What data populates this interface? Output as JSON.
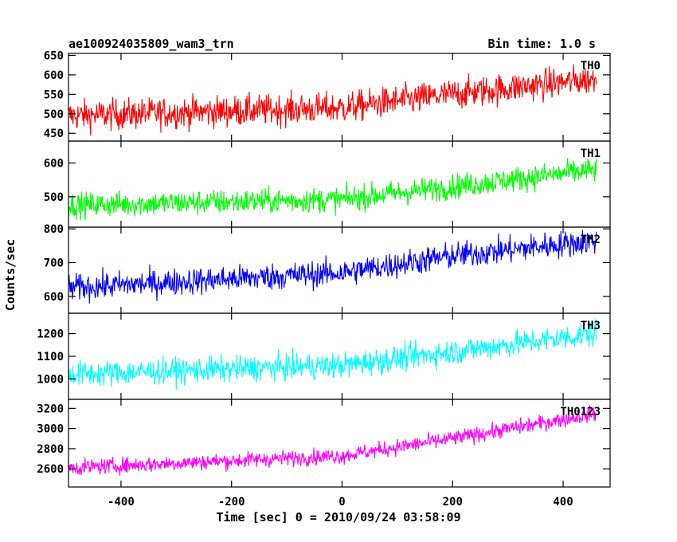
{
  "header": {
    "title": "ae100924035809_wam3_trn",
    "bin_time": "Bin time: 1.0 s"
  },
  "chart_data": {
    "type": "line",
    "xlabel": "Time [sec] 0 = 2010/09/24 03:58:09",
    "ylabel": "Counts/sec",
    "xlim": [
      -495,
      485
    ],
    "x_ticks": [
      -400,
      -200,
      0,
      200,
      400
    ],
    "x_range": [
      -495,
      460
    ],
    "bin_time_s": 1.0,
    "panels": [
      {
        "name": "TH0",
        "color": "#ff0000",
        "ylim": [
          430,
          655
        ],
        "y_ticks": [
          450,
          500,
          550,
          600,
          650
        ],
        "trend": [
          {
            "x": -495,
            "y": 495
          },
          {
            "x": 0,
            "y": 515
          },
          {
            "x": 200,
            "y": 550
          },
          {
            "x": 460,
            "y": 590
          }
        ],
        "noise": 28
      },
      {
        "name": "TH1",
        "color": "#00ff00",
        "ylim": [
          410,
          665
        ],
        "y_ticks": [
          500,
          600
        ],
        "trend": [
          {
            "x": -495,
            "y": 475
          },
          {
            "x": 0,
            "y": 492
          },
          {
            "x": 200,
            "y": 530
          },
          {
            "x": 460,
            "y": 580
          }
        ],
        "noise": 26
      },
      {
        "name": "TH2",
        "color": "#0000ff",
        "ylim": [
          550,
          805
        ],
        "y_ticks": [
          600,
          700,
          800
        ],
        "trend": [
          {
            "x": -495,
            "y": 625
          },
          {
            "x": 0,
            "y": 670
          },
          {
            "x": 200,
            "y": 720
          },
          {
            "x": 460,
            "y": 765
          }
        ],
        "noise": 28
      },
      {
        "name": "TH3",
        "color": "#00ffff",
        "ylim": [
          910,
          1290
        ],
        "y_ticks": [
          1000,
          1100,
          1200
        ],
        "trend": [
          {
            "x": -495,
            "y": 1020
          },
          {
            "x": 0,
            "y": 1060
          },
          {
            "x": 200,
            "y": 1120
          },
          {
            "x": 460,
            "y": 1200
          }
        ],
        "noise": 40
      },
      {
        "name": "TH0123",
        "color": "#ff00ff",
        "ylim": [
          2420,
          3290
        ],
        "y_ticks": [
          2600,
          2800,
          3000,
          3200
        ],
        "trend": [
          {
            "x": -495,
            "y": 2610
          },
          {
            "x": 0,
            "y": 2730
          },
          {
            "x": 200,
            "y": 2900
          },
          {
            "x": 460,
            "y": 3150
          }
        ],
        "noise": 55
      }
    ]
  }
}
